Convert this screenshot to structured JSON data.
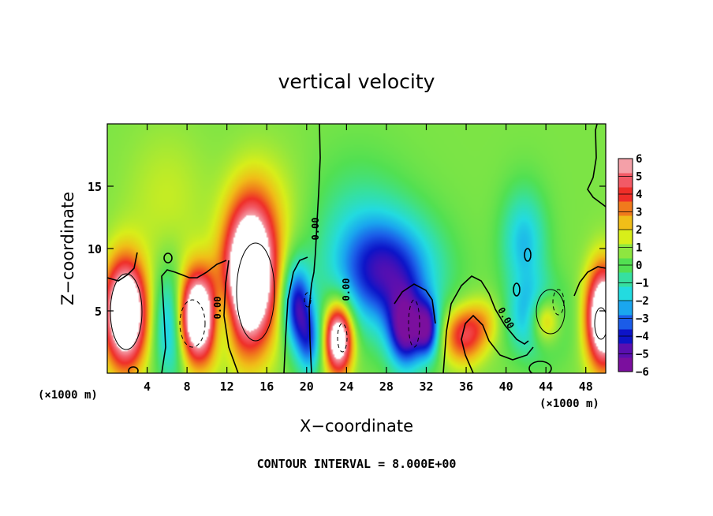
{
  "chart_data": {
    "type": "heatmap",
    "title": "vertical velocity",
    "xlabel": "X−coordinate",
    "ylabel": "Z−coordinate",
    "x_unit": "(×1000 m)",
    "z_unit": "(×1000 m)",
    "xlim": [
      0,
      50
    ],
    "ylim": [
      0,
      20
    ],
    "x_ticks": [
      4,
      8,
      12,
      16,
      20,
      24,
      28,
      32,
      36,
      40,
      44,
      48
    ],
    "y_ticks": [
      5,
      10,
      15
    ],
    "colorbar": {
      "min": -6,
      "max": 6,
      "ticks": [
        6,
        5,
        4,
        3,
        2,
        1,
        0,
        -1,
        -2,
        -3,
        -4,
        -5,
        -6
      ],
      "tick_labels": [
        "6",
        "5",
        "4",
        "3",
        "2",
        "1",
        "0",
        "−1",
        "−2",
        "−3",
        "−4",
        "−5",
        "−6"
      ],
      "colors": [
        "#7b0f9e",
        "#5a0fb0",
        "#0d14c8",
        "#1b5ce8",
        "#1aa6ef",
        "#23dbe0",
        "#36e0a0",
        "#52e052",
        "#8ee640",
        "#d8ee1a",
        "#f0be18",
        "#f07a1c",
        "#ef2e28",
        "#f25a66",
        "#f4a0a8"
      ]
    },
    "contour_label": "0.00",
    "cells": [
      {
        "x": 1.8,
        "z": 4.8,
        "sx": 1.5,
        "sz": 3.0,
        "w": 9.0
      },
      {
        "x": 9.0,
        "z": 4.5,
        "sx": 1.6,
        "sz": 2.6,
        "w": 9.0
      },
      {
        "x": 6.5,
        "z": 4.0,
        "sx": 1.2,
        "sz": 3.0,
        "w": -4.5
      },
      {
        "x": 11.4,
        "z": 4.5,
        "sx": 1.0,
        "sz": 2.2,
        "w": -3.0
      },
      {
        "x": 14.3,
        "z": 7.8,
        "sx": 1.8,
        "sz": 4.0,
        "w": 10.0
      },
      {
        "x": 19.0,
        "z": 5.5,
        "sx": 1.0,
        "sz": 2.4,
        "w": -5.0
      },
      {
        "x": 20.3,
        "z": 2.5,
        "sx": 0.9,
        "sz": 2.0,
        "w": -3.5
      },
      {
        "x": 23.2,
        "z": 2.8,
        "sx": 1.0,
        "sz": 2.0,
        "w": 8.0
      },
      {
        "x": 28.0,
        "z": 8.0,
        "sx": 3.6,
        "sz": 3.2,
        "w": -5.0
      },
      {
        "x": 30.0,
        "z": 3.3,
        "sx": 1.3,
        "sz": 2.2,
        "w": -5.5
      },
      {
        "x": 32.2,
        "z": 3.5,
        "sx": 0.8,
        "sz": 1.6,
        "w": -4.5
      },
      {
        "x": 35.7,
        "z": 3.0,
        "sx": 1.5,
        "sz": 1.6,
        "w": 4.0
      },
      {
        "x": 37.8,
        "z": 4.2,
        "sx": 1.3,
        "sz": 1.4,
        "w": 1.5
      },
      {
        "x": 43.2,
        "z": 4.3,
        "sx": 1.8,
        "sz": 2.0,
        "w": -5.0
      },
      {
        "x": 43.8,
        "z": 4.2,
        "sx": 1.2,
        "sz": 1.5,
        "w": 6.0
      },
      {
        "x": 41.8,
        "z": 10.5,
        "sx": 1.6,
        "sz": 3.0,
        "w": -2.8
      },
      {
        "x": 49.8,
        "z": 4.5,
        "sx": 1.2,
        "sz": 2.8,
        "w": 9.0
      },
      {
        "x": 25.0,
        "z": 12.0,
        "sx": 3.5,
        "sz": 4.0,
        "w": -1.2
      },
      {
        "x": 6.0,
        "z": 14.0,
        "sx": 3.0,
        "sz": 4.0,
        "w": 0.9
      },
      {
        "x": 16.5,
        "z": 13.0,
        "sx": 2.5,
        "sz": 3.5,
        "w": 1.0
      }
    ],
    "caption": "CONTOUR INTERVAL = 8.000E+00"
  }
}
